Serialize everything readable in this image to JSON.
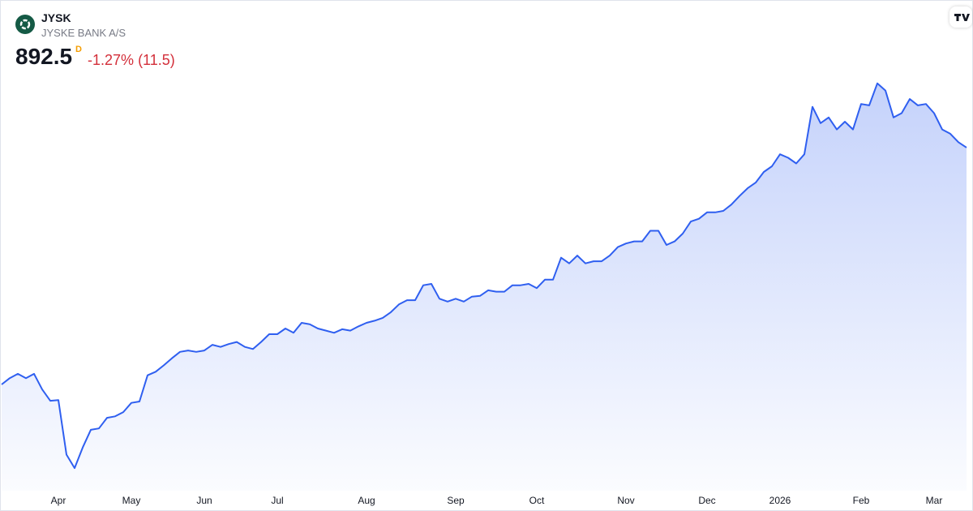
{
  "header": {
    "symbol": "JYSK",
    "name": "JYSKE BANK A/S",
    "price": "892.5",
    "interval": "D",
    "change": "-1.27%",
    "change_abs": "(11.5)"
  },
  "chart_data": {
    "type": "area",
    "color": "#2f5ff0",
    "ylim": [
      400,
      1000
    ],
    "categories": [
      null,
      null,
      null,
      null,
      null,
      null,
      null,
      "Apr",
      null,
      null,
      null,
      null,
      null,
      null,
      null,
      null,
      "May",
      null,
      null,
      null,
      null,
      null,
      null,
      null,
      null,
      "Jun",
      null,
      null,
      null,
      null,
      null,
      null,
      null,
      null,
      "Jul",
      null,
      null,
      null,
      null,
      null,
      null,
      null,
      null,
      null,
      null,
      "Aug",
      null,
      null,
      null,
      null,
      null,
      null,
      null,
      null,
      null,
      null,
      "Sep",
      null,
      null,
      null,
      null,
      null,
      null,
      null,
      null,
      null,
      "Oct",
      null,
      null,
      null,
      null,
      null,
      null,
      null,
      null,
      null,
      null,
      "Nov",
      null,
      null,
      null,
      null,
      null,
      null,
      null,
      null,
      null,
      "Dec",
      null,
      null,
      null,
      null,
      null,
      null,
      null,
      null,
      "2026",
      null,
      null,
      null,
      null,
      null,
      null,
      null,
      null,
      null,
      "Feb",
      null,
      null,
      null,
      null,
      null,
      null,
      null,
      null,
      "Mar",
      null,
      null,
      null,
      null
    ],
    "values": [
      558,
      567,
      573,
      567,
      573,
      551,
      535,
      536,
      459,
      440,
      469,
      494,
      496,
      511,
      513,
      519,
      532,
      534,
      571,
      576,
      585,
      595,
      604,
      606,
      604,
      606,
      614,
      611,
      615,
      618,
      611,
      608,
      618,
      629,
      629,
      637,
      631,
      645,
      643,
      637,
      634,
      631,
      636,
      634,
      640,
      645,
      648,
      652,
      660,
      671,
      677,
      677,
      698,
      700,
      679,
      675,
      679,
      675,
      682,
      683,
      691,
      689,
      689,
      698,
      698,
      700,
      694,
      706,
      706,
      737,
      729,
      740,
      729,
      732,
      732,
      740,
      752,
      757,
      760,
      760,
      775,
      775,
      755,
      760,
      771,
      788,
      792,
      801,
      801,
      803,
      812,
      824,
      835,
      843,
      858,
      866,
      883,
      878,
      870,
      883,
      950,
      927,
      935,
      918,
      929,
      918,
      954,
      952,
      983,
      973,
      935,
      941,
      961,
      952,
      954,
      941,
      918,
      912,
      900,
      892.5
    ]
  }
}
